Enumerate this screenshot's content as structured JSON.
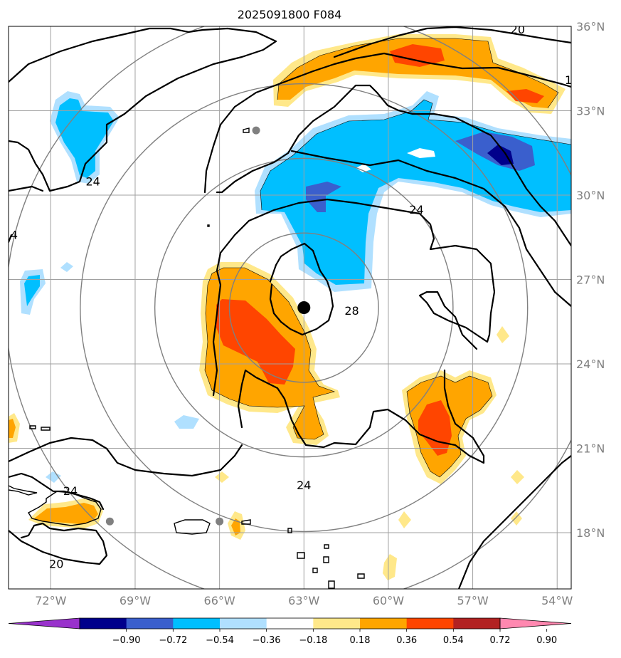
{
  "chart_data": {
    "type": "heatmap",
    "title": "2025091800 F084",
    "map_extent": {
      "lon": [
        -73.5,
        -53.5
      ],
      "lat": [
        16.0,
        36.0
      ]
    },
    "lon_ticks": [
      -72,
      -69,
      -66,
      -63,
      -60,
      -57,
      -54
    ],
    "lon_tick_labels": [
      "72°W",
      "69°W",
      "66°W",
      "63°W",
      "60°W",
      "57°W",
      "54°W"
    ],
    "lat_ticks": [
      18,
      21,
      24,
      27,
      30,
      33,
      36
    ],
    "lat_tick_labels": [
      "18°N",
      "21°N",
      "24°N",
      "27°N",
      "30°N",
      "33°N",
      "36°N"
    ],
    "grid": true,
    "storm_center": {
      "lon": -63.0,
      "lat": 26.0
    },
    "range_rings_center": {
      "lon": -63.0,
      "lat": 26.0
    },
    "range_rings_count": 4,
    "gray_markers": [
      {
        "lon": -64.7,
        "lat": 32.3
      },
      {
        "lon": -66.0,
        "lat": 18.4
      },
      {
        "lon": -69.9,
        "lat": 18.4
      }
    ],
    "contour_labels": [
      {
        "text": "20",
        "lon": -55.4,
        "lat": 35.9
      },
      {
        "text": "1",
        "lon": -53.6,
        "lat": 34.1
      },
      {
        "text": "24",
        "lon": -70.5,
        "lat": 30.5
      },
      {
        "text": "4",
        "lon": -73.3,
        "lat": 28.6
      },
      {
        "text": "24",
        "lon": -59.0,
        "lat": 29.5
      },
      {
        "text": "28",
        "lon": -61.3,
        "lat": 25.9
      },
      {
        "text": "24",
        "lon": -63.0,
        "lat": 19.7
      },
      {
        "text": "24",
        "lon": -71.3,
        "lat": 19.5
      },
      {
        "text": "20",
        "lon": -71.8,
        "lat": 16.9
      }
    ],
    "colorbar": {
      "extend": "both",
      "ticks": [
        "−0.90",
        "−0.72",
        "−0.54",
        "−0.36",
        "−0.18",
        "0.18",
        "0.36",
        "0.54",
        "0.72",
        "0.90"
      ],
      "colors": [
        "#9932cc",
        "#00008b",
        "#3a5fcd",
        "#00bfff",
        "#b0e0ff",
        "#ffffff",
        "#ffe88a",
        "#ffa500",
        "#ff4500",
        "#b22222",
        "#ff88b0"
      ]
    },
    "colors": {
      "light_blue": "#b0e0ff",
      "cyan": "#00bfff",
      "blue": "#3a5fcd",
      "navy": "#00008b",
      "light_yellow": "#ffe88a",
      "orange": "#ffa500",
      "red_orange": "#ff4500",
      "ring_gray": "#808080",
      "grid_gray": "#a0a0a0",
      "marker_gray": "#808080"
    }
  }
}
